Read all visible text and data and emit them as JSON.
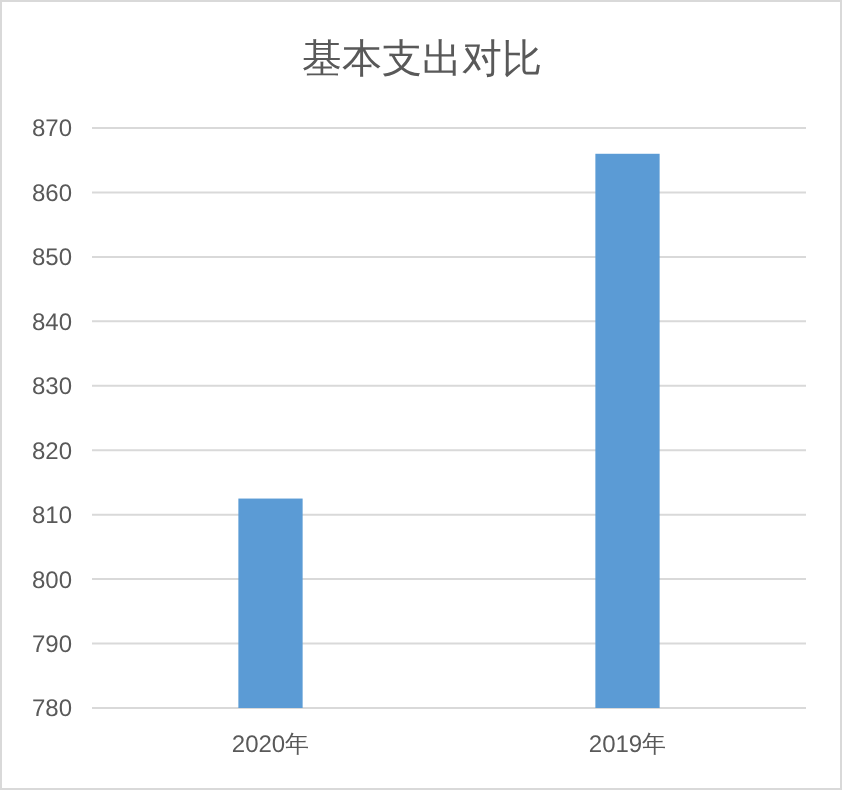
{
  "chart_data": {
    "type": "bar",
    "title": "基本支出对比",
    "categories": [
      "2020年",
      "2019年"
    ],
    "values": [
      812.5,
      866
    ],
    "color": "#5b9bd5",
    "ylim": [
      780,
      870
    ],
    "yticks": [
      780,
      790,
      800,
      810,
      820,
      830,
      840,
      850,
      860,
      870
    ],
    "grid": "y"
  }
}
